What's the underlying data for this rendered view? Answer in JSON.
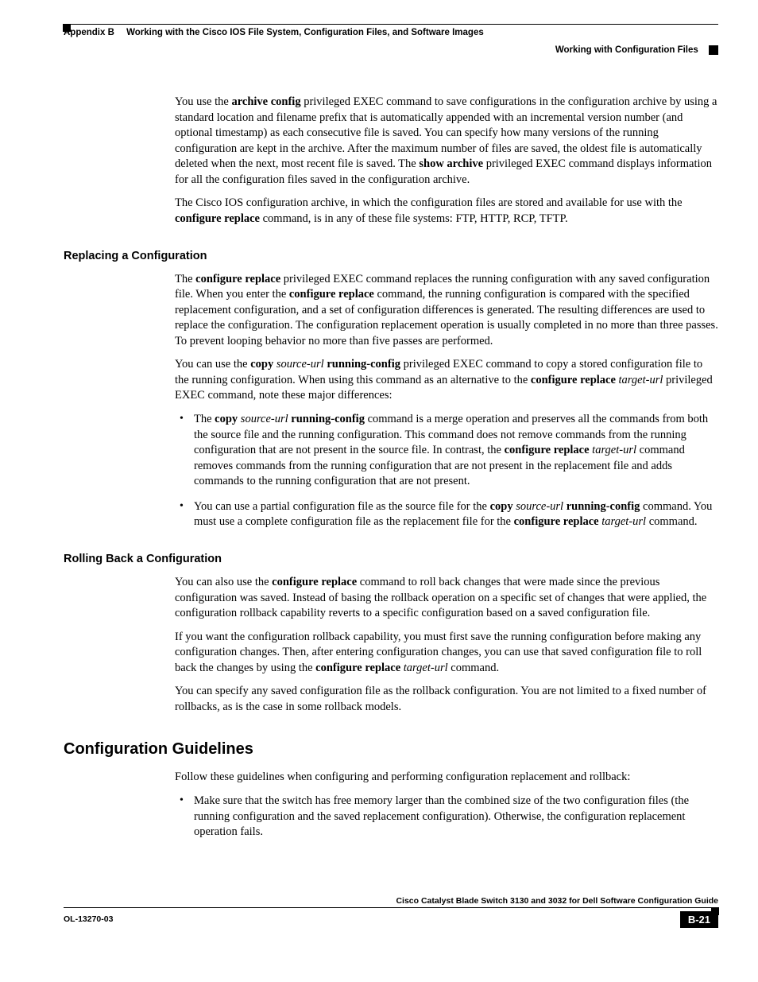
{
  "header": {
    "appendix_label": "Appendix B",
    "appendix_title": "Working with the Cisco IOS File System, Configuration Files, and Software Images",
    "subheader": "Working with Configuration Files"
  },
  "intro": {
    "p1_a": "You use the ",
    "p1_b": "archive config",
    "p1_c": " privileged EXEC command to save configurations in the configuration archive by using a standard location and filename prefix that is automatically appended with an incremental version number (and optional timestamp) as each consecutive file is saved. You can specify how many versions of the running configuration are kept in the archive. After the maximum number of files are saved, the oldest file is automatically deleted when the next, most recent file is saved. The ",
    "p1_d": "show archive",
    "p1_e": " privileged EXEC command displays information for all the configuration files saved in the configuration archive.",
    "p2_a": "The Cisco IOS configuration archive, in which the configuration files are stored and available for use with the ",
    "p2_b": "configure replace",
    "p2_c": " command, is in any of these file systems: FTP, HTTP, RCP, TFTP."
  },
  "replacing": {
    "heading": "Replacing a Configuration",
    "p1_a": "The ",
    "p1_b": "configure replace",
    "p1_c": " privileged EXEC command replaces the running configuration with any saved configuration file. When you enter the ",
    "p1_d": "configure replace",
    "p1_e": " command, the running configuration is compared with the specified replacement configuration, and a set of configuration differences is generated. The resulting differences are used to replace the configuration. The configuration replacement operation is usually completed in no more than three passes. To prevent looping behavior no more than five passes are performed.",
    "p2_a": "You can use the ",
    "p2_b": "copy",
    "p2_c": " ",
    "p2_d": "source-url",
    "p2_e": " ",
    "p2_f": "running-config",
    "p2_g": " privileged EXEC command to copy a stored configuration file to the running configuration. When using this command as an alternative to the ",
    "p2_h": "configure replace",
    "p2_i": " ",
    "p2_j": "target-url",
    "p2_k": " privileged EXEC command, note these major differences:",
    "b1_a": "The ",
    "b1_b": "copy",
    "b1_c": " ",
    "b1_d": "source-url",
    "b1_e": " ",
    "b1_f": "running-config",
    "b1_g": " command is a merge operation and preserves all the commands from both the source file and the running configuration. This command does not remove commands from the running configuration that are not present in the source file. In contrast, the ",
    "b1_h": "configure replace",
    "b1_i": " ",
    "b1_j": "target-url",
    "b1_k": " command removes commands from the running configuration that are not present in the replacement file and adds commands to the running configuration that are not present.",
    "b2_a": "You can use a partial configuration file as the source file for the ",
    "b2_b": "copy",
    "b2_c": " ",
    "b2_d": "source-url",
    "b2_e": " ",
    "b2_f": "running-config",
    "b2_g": " command. You must use a complete configuration file as the replacement file for the ",
    "b2_h": "configure replace",
    "b2_i": " ",
    "b2_j": "target-url",
    "b2_k": " command."
  },
  "rolling": {
    "heading": "Rolling Back a Configuration",
    "p1_a": "You can also use the ",
    "p1_b": "configure replace",
    "p1_c": " command to roll back changes that were made since the previous configuration was saved. Instead of basing the rollback operation on a specific set of changes that were applied, the configuration rollback capability reverts to a specific configuration based on a saved configuration file.",
    "p2_a": "If you want the configuration rollback capability, you must first save the running configuration before making any configuration changes. Then, after entering configuration changes, you can use that saved configuration file to roll back the changes by using the ",
    "p2_b": "configure replace",
    "p2_c": " ",
    "p2_d": "target-url",
    "p2_e": " command.",
    "p3": "You can specify any saved configuration file as the rollback configuration. You are not limited to a fixed number of rollbacks, as is the case in some rollback models."
  },
  "guidelines": {
    "heading": "Configuration Guidelines",
    "intro": "Follow these guidelines when configuring and performing configuration replacement and rollback:",
    "b1": "Make sure that the switch has free memory larger than the combined size of the two configuration files (the running configuration and the saved replacement configuration). Otherwise, the configuration replacement operation fails."
  },
  "footer": {
    "guide_title": "Cisco Catalyst Blade Switch 3130 and 3032 for Dell Software Configuration Guide",
    "doc_id": "OL-13270-03",
    "page_num": "B-21"
  }
}
